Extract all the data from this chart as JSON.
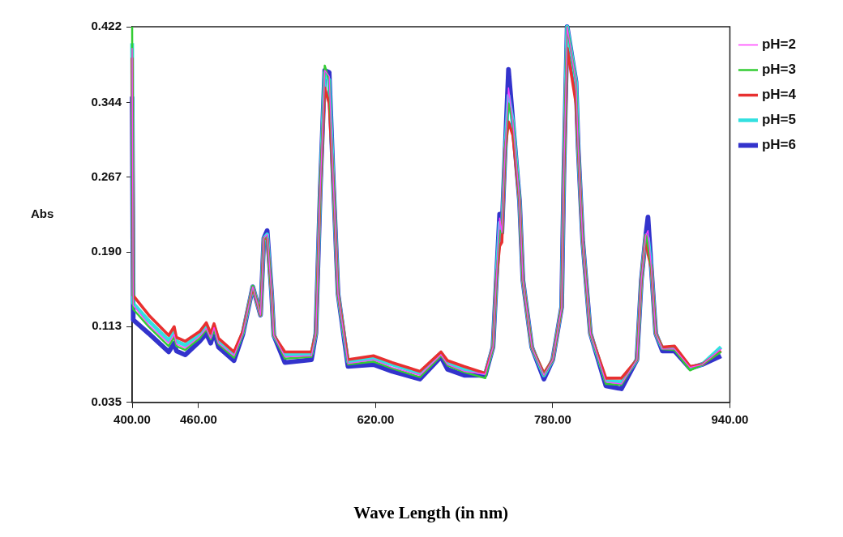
{
  "chart_data": {
    "type": "line",
    "ylabel": "Abs",
    "xlabel": "Wave Length (in nm)",
    "legend": "right",
    "grid": false,
    "marker": "none",
    "line_style": "solid",
    "xlim": [
      400,
      940
    ],
    "xticks": [
      {
        "value": 400,
        "label": "400.00"
      },
      {
        "value": 460,
        "label": "460.00"
      },
      {
        "value": 620,
        "label": "620.00"
      },
      {
        "value": 780,
        "label": "780.00"
      },
      {
        "value": 940,
        "label": "940.00"
      }
    ],
    "ylim": [
      0.035,
      0.422
    ],
    "yticks": [
      0.035,
      0.113,
      {
        "value": 0.19,
        "label": "0.190"
      },
      0.267,
      0.344,
      0.422
    ],
    "x": [
      400,
      401,
      415,
      433,
      438,
      440,
      448,
      461,
      467,
      471,
      474,
      478,
      492,
      500,
      509,
      516,
      519,
      522,
      526,
      528,
      538,
      562,
      566,
      570,
      574,
      578,
      582,
      586,
      595,
      618,
      635,
      660,
      679,
      685,
      700,
      719,
      726,
      729,
      732,
      734,
      737,
      740,
      744,
      750,
      753,
      761,
      772,
      780,
      788,
      790,
      793,
      801,
      803,
      807,
      814,
      828,
      842,
      856,
      860,
      864,
      866,
      869,
      873,
      879,
      890,
      904,
      915,
      932
    ],
    "series": [
      {
        "name": "pH=2",
        "color": "#ff40ff",
        "values": [
          0.4,
          0.135,
          0.115,
          0.096,
          0.105,
          0.095,
          0.091,
          0.103,
          0.111,
          0.101,
          0.112,
          0.096,
          0.083,
          0.106,
          0.154,
          0.125,
          0.204,
          0.208,
          0.147,
          0.104,
          0.082,
          0.083,
          0.106,
          0.256,
          0.377,
          0.371,
          0.256,
          0.147,
          0.075,
          0.079,
          0.071,
          0.063,
          0.084,
          0.074,
          0.067,
          0.064,
          0.092,
          0.161,
          0.225,
          0.21,
          0.296,
          0.359,
          0.324,
          0.242,
          0.161,
          0.092,
          0.063,
          0.079,
          0.133,
          0.269,
          0.422,
          0.365,
          0.296,
          0.202,
          0.106,
          0.056,
          0.054,
          0.079,
          0.161,
          0.207,
          0.212,
          0.174,
          0.106,
          0.09,
          0.09,
          0.071,
          0.074,
          0.09
        ]
      },
      {
        "name": "pH=3",
        "color": "#33cc33",
        "values": [
          0.422,
          0.131,
          0.113,
          0.093,
          0.102,
          0.093,
          0.089,
          0.101,
          0.11,
          0.1,
          0.11,
          0.095,
          0.081,
          0.105,
          0.155,
          0.125,
          0.204,
          0.206,
          0.147,
          0.104,
          0.08,
          0.082,
          0.106,
          0.256,
          0.382,
          0.367,
          0.256,
          0.147,
          0.074,
          0.077,
          0.07,
          0.061,
          0.083,
          0.073,
          0.066,
          0.06,
          0.092,
          0.161,
          0.212,
          0.21,
          0.296,
          0.343,
          0.324,
          0.242,
          0.161,
          0.092,
          0.063,
          0.079,
          0.133,
          0.269,
          0.422,
          0.365,
          0.296,
          0.202,
          0.106,
          0.054,
          0.053,
          0.079,
          0.161,
          0.207,
          0.196,
          0.174,
          0.106,
          0.09,
          0.089,
          0.068,
          0.074,
          0.087
        ]
      },
      {
        "name": "pH=4",
        "color": "#e83030",
        "values": [
          0.39,
          0.145,
          0.125,
          0.104,
          0.113,
          0.102,
          0.098,
          0.108,
          0.117,
          0.106,
          0.116,
          0.101,
          0.087,
          0.108,
          0.154,
          0.125,
          0.204,
          0.204,
          0.147,
          0.104,
          0.087,
          0.087,
          0.106,
          0.256,
          0.359,
          0.343,
          0.256,
          0.147,
          0.079,
          0.083,
          0.076,
          0.067,
          0.087,
          0.078,
          0.072,
          0.065,
          0.092,
          0.161,
          0.196,
          0.2,
          0.296,
          0.324,
          0.31,
          0.242,
          0.161,
          0.092,
          0.065,
          0.079,
          0.133,
          0.269,
          0.4,
          0.343,
          0.296,
          0.202,
          0.106,
          0.06,
          0.06,
          0.079,
          0.161,
          0.207,
          0.188,
          0.174,
          0.106,
          0.092,
          0.093,
          0.072,
          0.074,
          0.088
        ]
      },
      {
        "name": "pH=5",
        "color": "#33e0e0",
        "values": [
          0.405,
          0.137,
          0.119,
          0.099,
          0.108,
          0.098,
          0.094,
          0.105,
          0.114,
          0.103,
          0.114,
          0.098,
          0.084,
          0.107,
          0.154,
          0.125,
          0.204,
          0.208,
          0.147,
          0.104,
          0.084,
          0.085,
          0.106,
          0.256,
          0.375,
          0.367,
          0.256,
          0.147,
          0.077,
          0.08,
          0.074,
          0.065,
          0.086,
          0.076,
          0.069,
          0.065,
          0.092,
          0.161,
          0.22,
          0.21,
          0.296,
          0.351,
          0.324,
          0.242,
          0.161,
          0.092,
          0.063,
          0.079,
          0.133,
          0.269,
          0.422,
          0.365,
          0.296,
          0.202,
          0.106,
          0.057,
          0.056,
          0.079,
          0.161,
          0.207,
          0.204,
          0.174,
          0.106,
          0.091,
          0.091,
          0.071,
          0.074,
          0.092
        ]
      },
      {
        "name": "pH=6",
        "color": "#3333cc",
        "values": [
          0.35,
          0.12,
          0.106,
          0.087,
          0.096,
          0.088,
          0.084,
          0.098,
          0.106,
          0.096,
          0.108,
          0.092,
          0.078,
          0.105,
          0.154,
          0.125,
          0.204,
          0.212,
          0.147,
          0.104,
          0.076,
          0.079,
          0.106,
          0.256,
          0.377,
          0.375,
          0.256,
          0.147,
          0.072,
          0.074,
          0.067,
          0.059,
          0.082,
          0.069,
          0.063,
          0.063,
          0.092,
          0.161,
          0.229,
          0.21,
          0.296,
          0.378,
          0.324,
          0.242,
          0.161,
          0.092,
          0.059,
          0.079,
          0.133,
          0.269,
          0.422,
          0.365,
          0.296,
          0.202,
          0.106,
          0.052,
          0.049,
          0.079,
          0.161,
          0.207,
          0.226,
          0.174,
          0.106,
          0.088,
          0.088,
          0.07,
          0.074,
          0.083
        ]
      }
    ]
  }
}
